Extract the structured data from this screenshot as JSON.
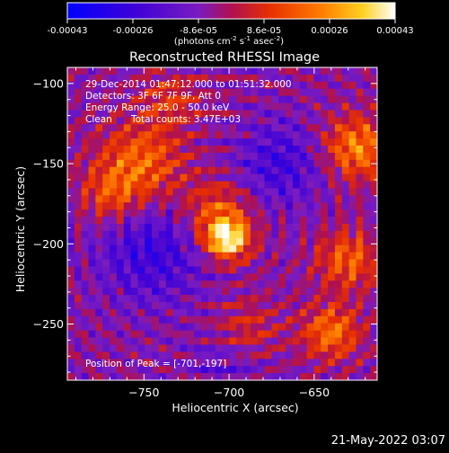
{
  "chart_data": {
    "type": "heatmap",
    "title": "Reconstructed RHESSI Image",
    "colorbar": {
      "ticks": [
        "-0.00043",
        "-0.00026",
        "-8.6e-05",
        "8.6e-05",
        "0.00026",
        "0.00043"
      ],
      "range": [
        -0.00043,
        0.00043
      ],
      "unit_prefix": "(photons cm",
      "unit_exp1": "-2",
      "unit_mid1": " s",
      "unit_exp2": "-1",
      "unit_mid2": " asec",
      "unit_exp3": "-2",
      "unit_suffix": ")"
    },
    "xlabel": "Heliocentric X (arcsec)",
    "ylabel": "Heliocentric Y (arcsec)",
    "xlim": [
      -795,
      -613
    ],
    "ylim": [
      -285,
      -90
    ],
    "x_ticks": [
      -750,
      -700,
      -650
    ],
    "x_tick_labels": [
      "−750",
      "−700",
      "−650"
    ],
    "y_ticks": [
      -100,
      -150,
      -200,
      -250
    ],
    "y_tick_labels": [
      "−100",
      "−150",
      "−200",
      "−250"
    ],
    "annotations": {
      "time": "29-Dec-2014 01:47:12.000 to 01:51:32.000",
      "detectors": "Detectors: 3F 6F 7F 9F, Att 0",
      "energy": "Energy Range: 25.0 - 50.0 keV",
      "method": "Clean",
      "counts": "Total counts: 3.47E+03",
      "peak": "Position of Peak = [-701,-197]"
    },
    "peak": [
      -701,
      -197
    ],
    "grid": false
  },
  "footer": {
    "date": "21-May-2022 03:07"
  }
}
